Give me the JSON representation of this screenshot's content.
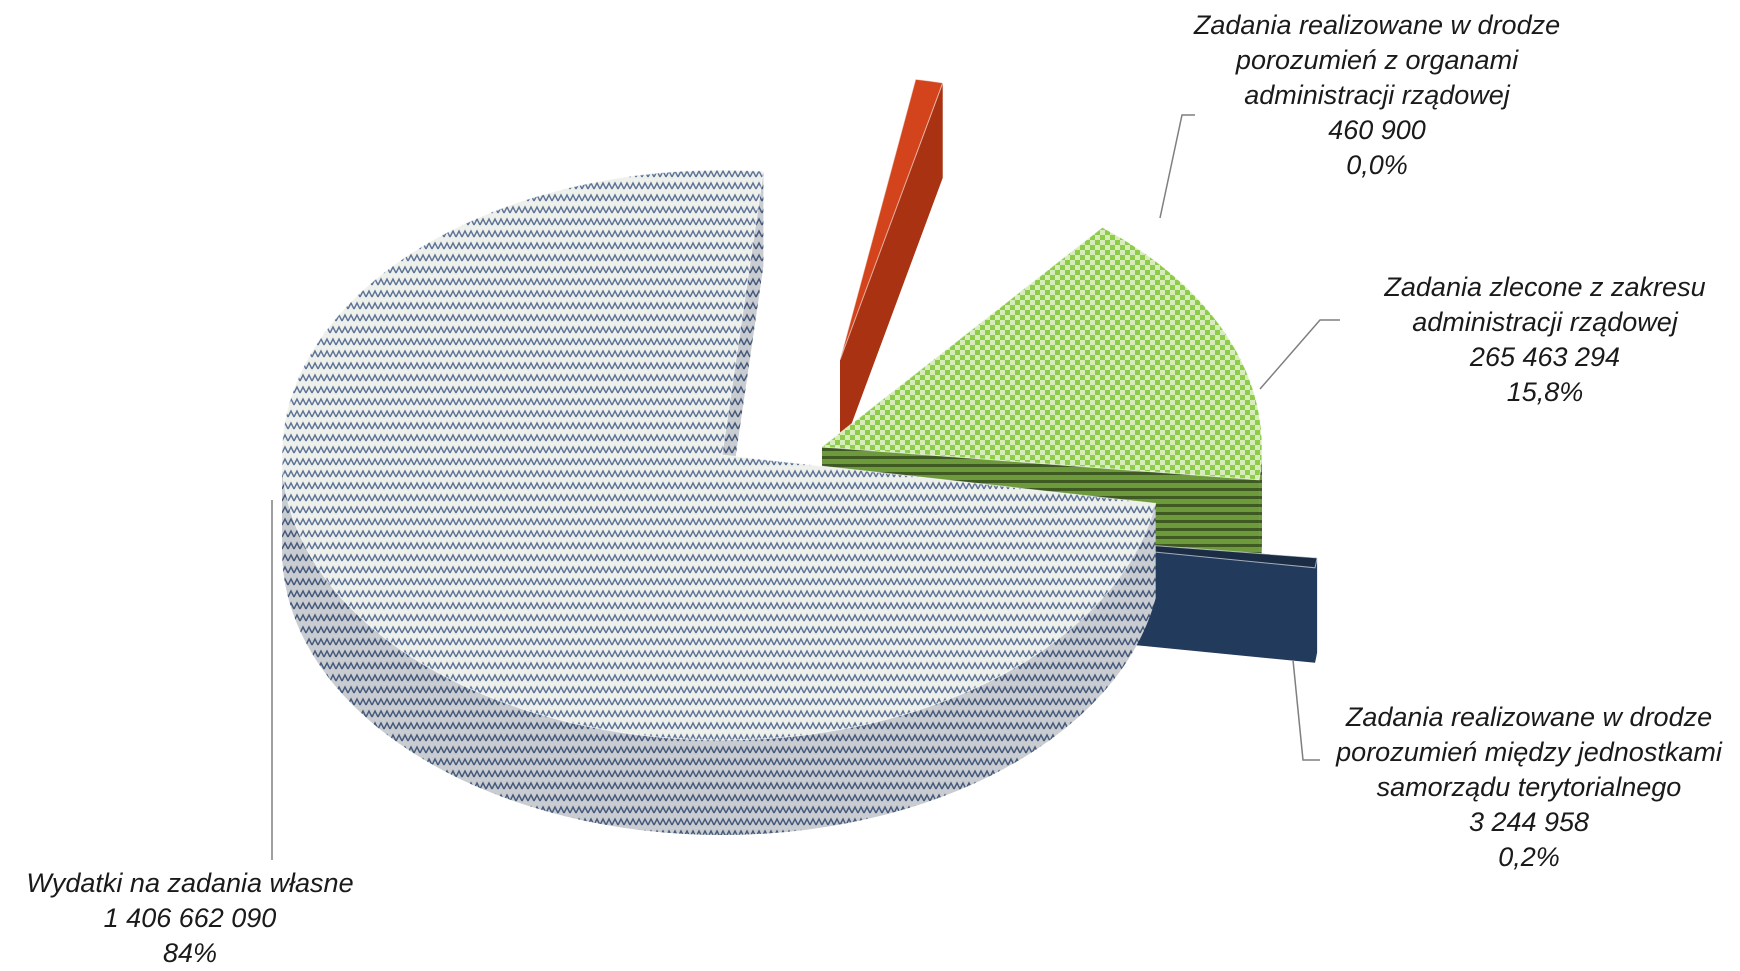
{
  "chart_data": {
    "type": "pie",
    "style": "3d-exploded",
    "title": "",
    "slices": [
      {
        "lines": [
          "Wydatki na zadania własne"
        ],
        "value_label": "1 406 662 090",
        "value": 1406662090,
        "percent_label": "84%",
        "color": "#eef0ec",
        "pattern": "blue-weave"
      },
      {
        "lines": [
          "Zadania zlecone z zakresu",
          "administracji rządowej"
        ],
        "value_label": "265 463 294",
        "value": 265463294,
        "percent_label": "15,8%",
        "color": "#8fcc4a",
        "pattern": "checker"
      },
      {
        "lines": [
          "Zadania realizowane w drodze",
          "porozumień między jednostkami",
          "samorządu terytorialnego"
        ],
        "value_label": "3 244 958",
        "value": 3244958,
        "percent_label": "0,2%",
        "color": "#1b2d45",
        "pattern": "solid"
      },
      {
        "lines": [
          "Zadania realizowane w drodze",
          "porozumień z organami",
          "administracji rządowej"
        ],
        "value_label": "460 900",
        "value": 460900,
        "percent_label": "0,0%",
        "color": "#d3441c",
        "pattern": "solid"
      }
    ]
  }
}
